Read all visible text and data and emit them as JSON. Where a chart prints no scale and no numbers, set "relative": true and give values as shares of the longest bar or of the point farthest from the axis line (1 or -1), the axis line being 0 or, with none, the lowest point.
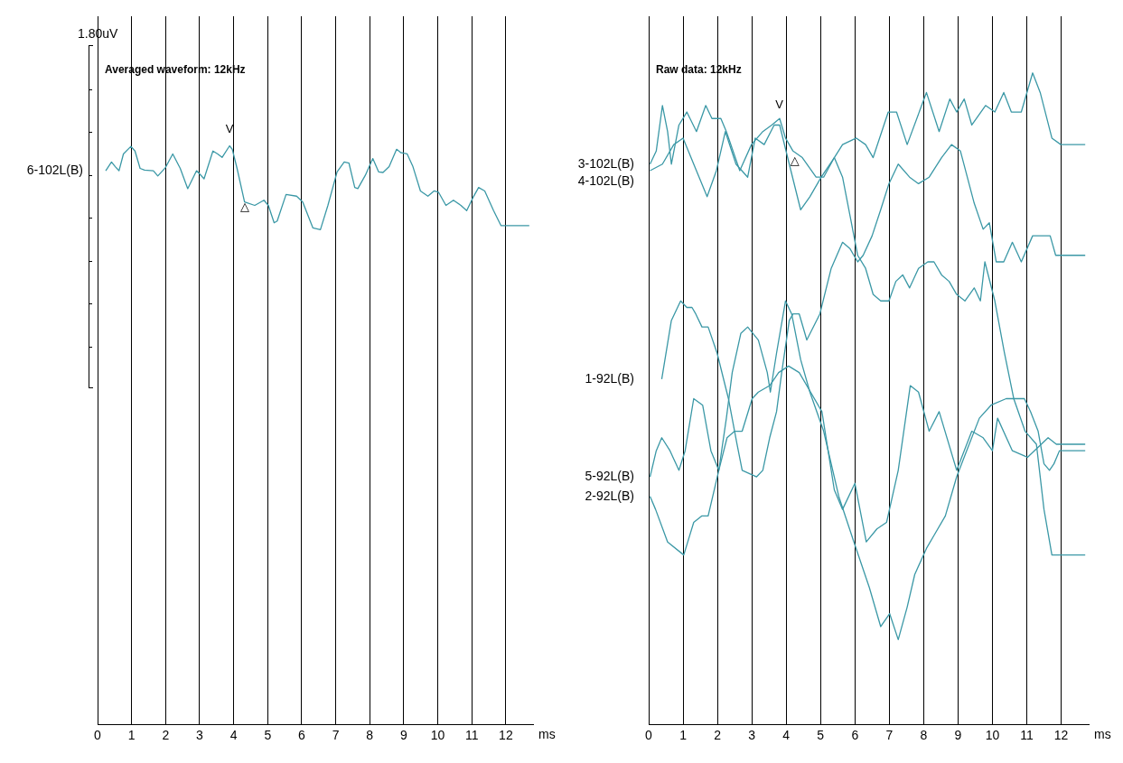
{
  "chart_data": [
    {
      "type": "line",
      "title": "Averaged waveform: 12kHz",
      "xlabel": "ms",
      "relative": true,
      "xlim": [
        0,
        12.8
      ],
      "xticks": [
        0,
        1,
        2,
        3,
        4,
        5,
        6,
        7,
        8,
        9,
        10,
        11,
        12
      ],
      "grid": "x",
      "legend": false,
      "annotations": [
        "1.80uV",
        "V",
        "△"
      ],
      "series": [
        {
          "name": "6-102L(B)",
          "color": "#3b98a6",
          "x": [
            0.24,
            0.41,
            0.52,
            0.63,
            0.76,
            0.98,
            1.1,
            1.25,
            1.38,
            1.64,
            1.77,
            1.99,
            2.21,
            2.43,
            2.65,
            2.91,
            3.13,
            3.39,
            3.53,
            3.66,
            3.88,
            3.96,
            4.1,
            4.32,
            4.62,
            4.89,
            5.02,
            5.19,
            5.28,
            5.54,
            5.85,
            6.03,
            6.33,
            6.55,
            6.77,
            7.04,
            7.25,
            7.39,
            7.56,
            7.65,
            7.87,
            8.09,
            8.26,
            8.39,
            8.57,
            8.79,
            8.92,
            9.1,
            9.27,
            9.49,
            9.71,
            9.89,
            10.02,
            10.24,
            10.46,
            10.68,
            10.85,
            11.03,
            11.2,
            11.38,
            11.64,
            11.86,
            12.69
          ],
          "values": [
            0.957,
            0.972,
            0.964,
            0.957,
            0.986,
            0.999,
            0.991,
            0.961,
            0.958,
            0.957,
            0.948,
            0.962,
            0.986,
            0.961,
            0.926,
            0.957,
            0.943,
            0.991,
            0.986,
            0.98,
            1.0,
            0.994,
            0.961,
            0.903,
            0.897,
            0.906,
            0.897,
            0.867,
            0.87,
            0.916,
            0.913,
            0.903,
            0.858,
            0.855,
            0.897,
            0.955,
            0.972,
            0.97,
            0.928,
            0.926,
            0.949,
            0.978,
            0.955,
            0.954,
            0.964,
            0.994,
            0.988,
            0.986,
            0.964,
            0.922,
            0.913,
            0.922,
            0.92,
            0.897,
            0.906,
            0.897,
            0.888,
            0.91,
            0.928,
            0.922,
            0.888,
            0.862,
            0.862
          ]
        }
      ]
    },
    {
      "type": "line",
      "title": "Raw data: 12kHz",
      "xlabel": "ms",
      "relative": true,
      "xlim": [
        0,
        12.8
      ],
      "xticks": [
        0,
        1,
        2,
        3,
        4,
        5,
        6,
        7,
        8,
        9,
        10,
        11,
        12
      ],
      "grid": "x",
      "legend": false,
      "annotations": [
        "V",
        "△"
      ],
      "series": [
        {
          "name": "3-102L(B)",
          "color": "#3b98a6",
          "x": [
            0.04,
            0.22,
            0.4,
            0.55,
            0.66,
            0.88,
            1.11,
            1.39,
            1.66,
            1.84,
            2.1,
            2.26,
            2.65,
            2.99,
            3.32,
            3.58,
            3.81,
            3.98,
            4.2,
            4.47,
            4.87,
            5.09,
            5.4,
            5.64,
            6.04,
            6.31,
            6.53,
            6.97,
            7.21,
            7.52,
            8.08,
            8.45,
            8.76,
            8.96,
            9.18,
            9.4,
            9.8,
            10.07,
            10.33,
            10.55,
            10.84,
            11.17,
            11.39,
            11.73,
            11.99,
            12.7
          ],
          "values": [
            0.86,
            0.88,
            0.95,
            0.91,
            0.86,
            0.92,
            0.94,
            0.91,
            0.95,
            0.93,
            0.93,
            0.91,
            0.85,
            0.89,
            0.91,
            0.92,
            0.93,
            0.9,
            0.88,
            0.87,
            0.84,
            0.84,
            0.87,
            0.89,
            0.9,
            0.89,
            0.87,
            0.94,
            0.94,
            0.89,
            0.97,
            0.91,
            0.96,
            0.94,
            0.96,
            0.92,
            0.95,
            0.94,
            0.97,
            0.94,
            0.94,
            1.0,
            0.97,
            0.9,
            0.89,
            0.89
          ]
        },
        {
          "name": "4-102L(B)",
          "color": "#3b98a6",
          "x": [
            0.04,
            0.4,
            0.73,
            1.0,
            1.31,
            1.7,
            1.97,
            2.23,
            2.54,
            2.88,
            3.1,
            3.36,
            3.65,
            3.81,
            4.09,
            4.42,
            4.69,
            5.02,
            5.4,
            5.64,
            5.86,
            6.08,
            6.31,
            6.53,
            6.75,
            6.99,
            7.19,
            7.39,
            7.59,
            7.85,
            8.12,
            8.3,
            8.52,
            8.74,
            8.96,
            9.2,
            9.47,
            9.65,
            9.78,
            10.07,
            10.35,
            10.62,
            10.95,
            11.28,
            11.5,
            11.73,
            12.7
          ],
          "values": [
            0.85,
            0.86,
            0.89,
            0.9,
            0.86,
            0.81,
            0.85,
            0.91,
            0.86,
            0.84,
            0.9,
            0.89,
            0.92,
            0.92,
            0.86,
            0.79,
            0.81,
            0.84,
            0.87,
            0.84,
            0.78,
            0.72,
            0.7,
            0.66,
            0.65,
            0.65,
            0.68,
            0.69,
            0.67,
            0.7,
            0.71,
            0.71,
            0.69,
            0.68,
            0.66,
            0.65,
            0.67,
            0.65,
            0.71,
            0.65,
            0.57,
            0.5,
            0.45,
            0.43,
            0.33,
            0.26,
            0.26
          ]
        },
        {
          "name": "1-92L(B)",
          "color": "#3b98a6",
          "x": [
            0.38,
            0.66,
            0.93,
            1.11,
            1.26,
            1.37,
            1.55,
            1.73,
            1.99,
            2.32,
            2.57,
            2.72,
            3.14,
            3.32,
            3.52,
            3.72,
            3.87,
            4.09,
            4.2,
            4.38,
            4.6,
            4.98,
            5.31,
            5.64,
            5.86,
            6.08,
            6.24,
            6.5,
            6.75,
            6.99,
            7.26,
            7.59,
            7.85,
            8.16,
            8.52,
            8.81,
            9.07,
            9.47,
            9.73,
            9.91,
            10.11,
            10.33,
            10.58,
            10.84,
            11.17,
            11.5,
            11.68,
            11.84,
            12.7
          ],
          "values": [
            0.53,
            0.62,
            0.65,
            0.64,
            0.64,
            0.63,
            0.61,
            0.61,
            0.57,
            0.5,
            0.43,
            0.39,
            0.38,
            0.39,
            0.44,
            0.48,
            0.54,
            0.62,
            0.63,
            0.63,
            0.59,
            0.63,
            0.7,
            0.74,
            0.73,
            0.71,
            0.72,
            0.75,
            0.79,
            0.83,
            0.86,
            0.84,
            0.83,
            0.84,
            0.87,
            0.89,
            0.88,
            0.8,
            0.76,
            0.77,
            0.71,
            0.71,
            0.74,
            0.71,
            0.75,
            0.75,
            0.75,
            0.72,
            0.72
          ]
        },
        {
          "name": "5-92L(B)",
          "color": "#3b98a6",
          "x": [
            0.04,
            0.22,
            0.38,
            0.62,
            0.88,
            1.06,
            1.31,
            1.57,
            1.81,
            2.04,
            2.28,
            2.5,
            2.72,
            3.01,
            3.19,
            3.52,
            3.78,
            4.07,
            4.38,
            4.71,
            5.04,
            5.4,
            5.64,
            6.0,
            6.33,
            6.64,
            6.92,
            7.26,
            7.61,
            7.85,
            8.16,
            8.45,
            8.96,
            9.4,
            9.73,
            10.0,
            10.15,
            10.58,
            11.02,
            11.62,
            11.86,
            12.7
          ],
          "values": [
            0.38,
            0.42,
            0.44,
            0.42,
            0.39,
            0.42,
            0.5,
            0.49,
            0.42,
            0.39,
            0.44,
            0.45,
            0.45,
            0.5,
            0.51,
            0.52,
            0.54,
            0.55,
            0.54,
            0.51,
            0.48,
            0.36,
            0.33,
            0.37,
            0.28,
            0.3,
            0.31,
            0.39,
            0.52,
            0.51,
            0.45,
            0.48,
            0.39,
            0.45,
            0.44,
            0.42,
            0.47,
            0.42,
            0.41,
            0.44,
            0.43,
            0.43
          ]
        },
        {
          "name": "2-92L(B)",
          "color": "#3b98a6",
          "x": [
            0.04,
            0.2,
            0.55,
            1.02,
            1.31,
            1.55,
            1.73,
            2.04,
            2.26,
            2.43,
            2.68,
            2.88,
            3.19,
            3.45,
            3.54,
            3.72,
            3.98,
            4.16,
            4.42,
            4.69,
            5.09,
            5.53,
            5.97,
            6.42,
            6.75,
            7.01,
            7.26,
            7.52,
            7.74,
            8.08,
            8.3,
            8.63,
            8.96,
            9.25,
            9.62,
            9.96,
            10.4,
            10.71,
            10.93,
            11.11,
            11.33,
            11.5,
            11.66,
            11.79,
            11.95,
            12.7
          ],
          "values": [
            0.35,
            0.33,
            0.28,
            0.26,
            0.31,
            0.32,
            0.32,
            0.39,
            0.47,
            0.54,
            0.6,
            0.61,
            0.59,
            0.54,
            0.51,
            0.57,
            0.65,
            0.63,
            0.56,
            0.51,
            0.45,
            0.35,
            0.28,
            0.21,
            0.15,
            0.17,
            0.13,
            0.18,
            0.23,
            0.27,
            0.29,
            0.32,
            0.38,
            0.42,
            0.47,
            0.49,
            0.5,
            0.5,
            0.5,
            0.48,
            0.45,
            0.4,
            0.39,
            0.4,
            0.42,
            0.42
          ]
        }
      ]
    }
  ]
}
